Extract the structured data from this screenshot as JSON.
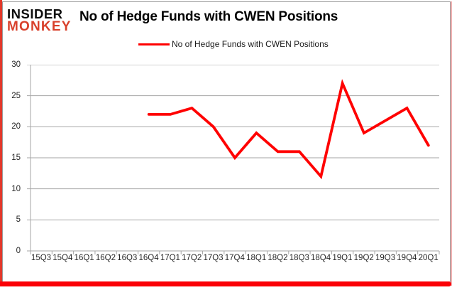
{
  "branding": {
    "logo_line1": "INSIDER",
    "logo_line2": "MONKEY",
    "logo_accent_color": "#d8402b"
  },
  "header": {
    "title": "No of Hedge Funds with CWEN Positions"
  },
  "legend": {
    "label": "No of Hedge Funds with CWEN Positions",
    "marker_color": "#ff0000"
  },
  "chart_data": {
    "type": "line",
    "title": "No of Hedge Funds with CWEN Positions",
    "categories": [
      "15Q3",
      "15Q4",
      "16Q1",
      "16Q2",
      "16Q3",
      "16Q4",
      "17Q1",
      "17Q2",
      "17Q3",
      "17Q4",
      "18Q1",
      "18Q2",
      "18Q3",
      "18Q4",
      "19Q1",
      "19Q2",
      "19Q3",
      "19Q4",
      "20Q1"
    ],
    "series": [
      {
        "name": "No of Hedge Funds with CWEN Positions",
        "color": "#ff0000",
        "values": [
          null,
          null,
          null,
          null,
          null,
          22,
          22,
          23,
          20,
          15,
          19,
          16,
          16,
          12,
          27,
          19,
          21,
          23,
          17
        ]
      }
    ],
    "xlabel": "",
    "ylabel": "",
    "ylim": [
      0,
      30
    ],
    "yticks": [
      0,
      5,
      10,
      15,
      20,
      25,
      30
    ],
    "grid": true,
    "gridline_color": "#a6a6a6",
    "axis_label_color": "#262626",
    "legend_position": "top-center"
  },
  "frame": {
    "bottom_bar_color": "#fb0006",
    "left_edge_color": "#e2382a",
    "right_edge_color": "#f2aeae",
    "chart_border_color": "#9a9a9a"
  }
}
